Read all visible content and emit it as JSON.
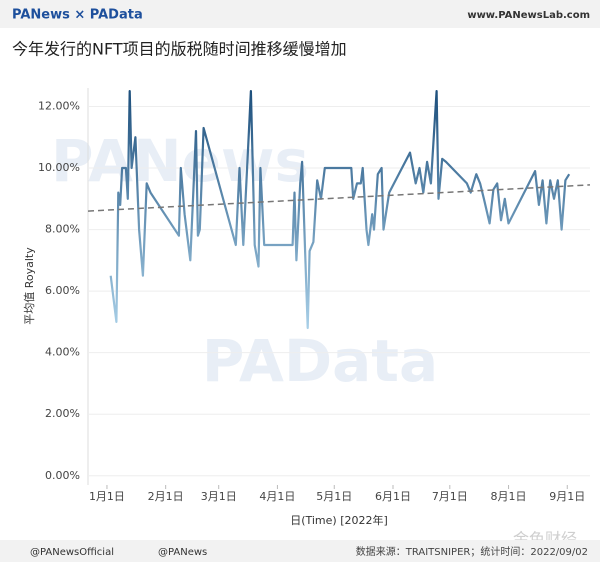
{
  "header": {
    "brand": "PANews × PAData",
    "site": "www.PANewsLab.com"
  },
  "chart_data": {
    "type": "line",
    "title": "今年发行的NFT项目的版税随时间推移缓慢增加",
    "y_label": "平均值 Royalty",
    "x_label": "日(Time) [2022年]",
    "x": [
      "2022-01-03",
      "2022-01-06",
      "2022-01-07",
      "2022-01-08",
      "2022-01-09",
      "2022-01-11",
      "2022-01-12",
      "2022-01-13",
      "2022-01-14",
      "2022-01-16",
      "2022-01-18",
      "2022-01-20",
      "2022-01-22",
      "2022-01-24",
      "2022-02-08",
      "2022-02-09",
      "2022-02-11",
      "2022-02-14",
      "2022-02-17",
      "2022-02-18",
      "2022-02-19",
      "2022-02-21",
      "2022-03-10",
      "2022-03-12",
      "2022-03-14",
      "2022-03-18",
      "2022-03-20",
      "2022-03-22",
      "2022-03-23",
      "2022-03-25",
      "2022-04-09",
      "2022-04-10",
      "2022-04-11",
      "2022-04-13",
      "2022-04-14",
      "2022-04-17",
      "2022-04-18",
      "2022-04-20",
      "2022-04-22",
      "2022-04-24",
      "2022-04-26",
      "2022-05-10",
      "2022-05-11",
      "2022-05-13",
      "2022-05-15",
      "2022-05-16",
      "2022-05-18",
      "2022-05-19",
      "2022-05-21",
      "2022-05-22",
      "2022-05-24",
      "2022-05-26",
      "2022-05-27",
      "2022-05-30",
      "2022-06-10",
      "2022-06-13",
      "2022-06-15",
      "2022-06-17",
      "2022-06-19",
      "2022-06-21",
      "2022-06-24",
      "2022-06-25",
      "2022-06-27",
      "2022-06-29",
      "2022-07-10",
      "2022-07-12",
      "2022-07-15",
      "2022-07-17",
      "2022-07-19",
      "2022-07-22",
      "2022-07-24",
      "2022-07-26",
      "2022-07-28",
      "2022-07-30",
      "2022-08-01",
      "2022-08-15",
      "2022-08-17",
      "2022-08-19",
      "2022-08-21",
      "2022-08-23",
      "2022-08-25",
      "2022-08-27",
      "2022-08-29",
      "2022-08-31",
      "2022-09-02"
    ],
    "series": [
      {
        "name": "平均值 Royalty",
        "values": [
          6.5,
          5.0,
          9.2,
          8.8,
          10.0,
          10.0,
          9.0,
          12.5,
          10.0,
          11.0,
          8.0,
          6.5,
          9.5,
          9.2,
          7.8,
          10.0,
          8.5,
          7.0,
          11.2,
          7.8,
          8.0,
          11.3,
          7.5,
          10.0,
          7.5,
          12.5,
          7.5,
          6.8,
          10.0,
          7.5,
          7.5,
          9.2,
          7.0,
          9.5,
          10.2,
          4.8,
          7.3,
          7.6,
          9.6,
          9.0,
          10.0,
          10.0,
          9.0,
          9.5,
          9.5,
          10.0,
          8.0,
          7.5,
          8.5,
          8.0,
          9.8,
          10.0,
          8.0,
          9.2,
          10.5,
          9.5,
          10.0,
          9.2,
          10.2,
          9.5,
          12.5,
          9.0,
          10.3,
          10.2,
          9.5,
          9.2,
          9.8,
          9.5,
          9.0,
          8.2,
          9.3,
          9.5,
          8.3,
          9.0,
          8.2,
          9.9,
          8.8,
          9.6,
          8.2,
          9.6,
          9.0,
          9.6,
          8.0,
          9.6,
          9.8
        ]
      },
      {
        "name": "趋势",
        "x": [
          "2021-12-22",
          "2022-09-13"
        ],
        "values": [
          8.6,
          9.45
        ],
        "color": "#777777",
        "dashed": true
      }
    ],
    "color_scale": [
      "#a9d0e8",
      "#1d4f7c"
    ],
    "xlim": [
      "2021-12-22",
      "2022-09-13"
    ],
    "xticks": [
      {
        "value": "2022-01-01",
        "label": "1月1日"
      },
      {
        "value": "2022-02-01",
        "label": "2月1日"
      },
      {
        "value": "2022-03-01",
        "label": "3月1日"
      },
      {
        "value": "2022-04-01",
        "label": "4月1日"
      },
      {
        "value": "2022-05-01",
        "label": "5月1日"
      },
      {
        "value": "2022-06-01",
        "label": "6月1日"
      },
      {
        "value": "2022-07-01",
        "label": "7月1日"
      },
      {
        "value": "2022-08-01",
        "label": "8月1日"
      },
      {
        "value": "2022-09-01",
        "label": "9月1日"
      }
    ],
    "ylim": [
      -0.3,
      12.6
    ],
    "yticks": [
      {
        "value": 0,
        "label": "0.00%"
      },
      {
        "value": 2,
        "label": "2.00%"
      },
      {
        "value": 4,
        "label": "4.00%"
      },
      {
        "value": 6,
        "label": "6.00%"
      },
      {
        "value": 8,
        "label": "8.00%"
      },
      {
        "value": 10,
        "label": "10.00%"
      },
      {
        "value": 12,
        "label": "12.00%"
      }
    ],
    "grid": true
  },
  "watermarks": [
    "PANews",
    "PAData",
    "金色财经"
  ],
  "footer": {
    "twitter": "@PANewsOfficial",
    "weibo": "@PANews",
    "source": "数据来源：TRAITSNIPER；统计时间：2022/09/02"
  }
}
